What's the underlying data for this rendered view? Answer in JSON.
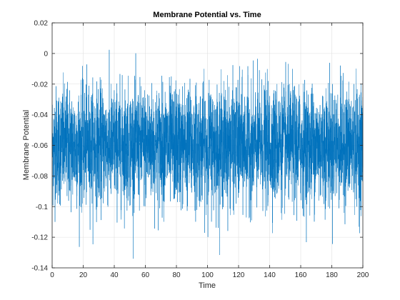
{
  "chart_data": {
    "type": "line",
    "title": "Membrane Potential vs. Time",
    "xlabel": "Time",
    "ylabel": "Membrane Potential",
    "xlim": [
      0,
      200
    ],
    "ylim": [
      -0.14,
      0.02
    ],
    "xticks": [
      0,
      20,
      40,
      60,
      80,
      100,
      120,
      140,
      160,
      180,
      200
    ],
    "yticks": [
      -0.14,
      -0.12,
      -0.1,
      -0.08,
      -0.06,
      -0.04,
      -0.02,
      0,
      0.02
    ],
    "xtick_labels": [
      "0",
      "20",
      "40",
      "60",
      "80",
      "100",
      "120",
      "140",
      "160",
      "180",
      "200"
    ],
    "ytick_labels": [
      "-0.14",
      "-0.12",
      "-0.1",
      "-0.08",
      "-0.06",
      "-0.04",
      "-0.02",
      "0",
      "0.02"
    ],
    "grid": true,
    "series": [
      {
        "color": "#0072BD",
        "description_of_shape": "dense noisy oscillation",
        "mean": -0.06,
        "typical_range": [
          -0.1,
          -0.02
        ],
        "extreme_range": [
          -0.134,
          0.008
        ]
      }
    ]
  }
}
